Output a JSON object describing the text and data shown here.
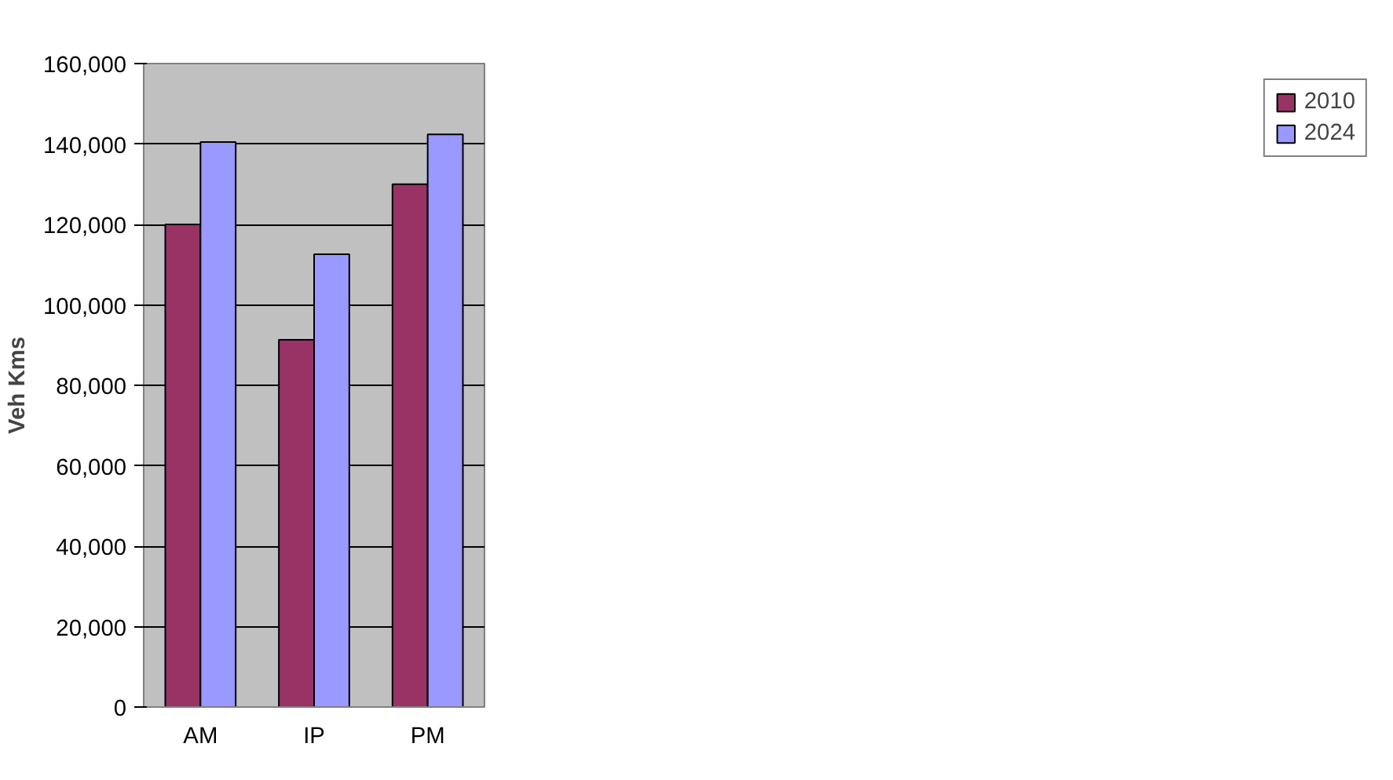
{
  "chart_data": {
    "type": "bar",
    "ylabel": "Veh Kms",
    "categories": [
      "AM",
      "IP",
      "PM"
    ],
    "series": [
      {
        "name": "2010",
        "color": "#993366",
        "values": [
          120000,
          91300,
          130000
        ]
      },
      {
        "name": "2024",
        "color": "#9999ff",
        "values": [
          140500,
          112600,
          142400
        ]
      }
    ],
    "ylim": [
      0,
      160000
    ],
    "yticks": [
      {
        "value": 0,
        "label": "0"
      },
      {
        "value": 20000,
        "label": "20,000"
      },
      {
        "value": 40000,
        "label": "40,000"
      },
      {
        "value": 60000,
        "label": "60,000"
      },
      {
        "value": 80000,
        "label": "80,000"
      },
      {
        "value": 100000,
        "label": "100,000"
      },
      {
        "value": 120000,
        "label": "120,000"
      },
      {
        "value": 140000,
        "label": "140,000"
      },
      {
        "value": 160000,
        "label": "160,000"
      }
    ],
    "grid": "y",
    "legend": "right"
  }
}
